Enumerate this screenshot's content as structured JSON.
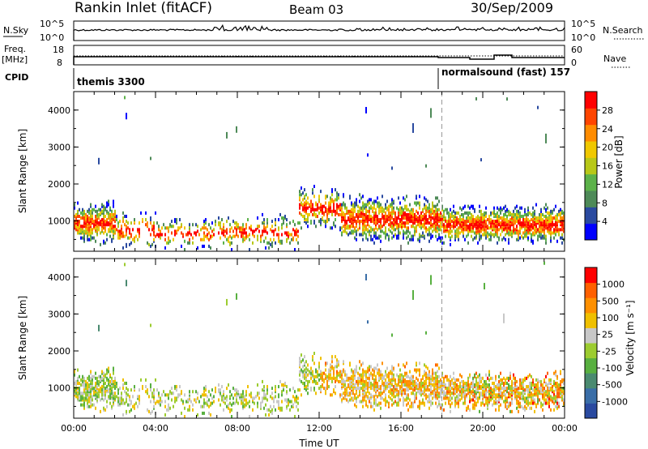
{
  "header": {
    "title": "Rankin Inlet (fitACF)",
    "beam": "Beam 03",
    "date": "30/Sep/2009"
  },
  "panels": {
    "nsky": {
      "left_label": "N.Sky",
      "right_label": "N.Search",
      "left_ticks": [
        "10^5",
        "10^0"
      ],
      "right_ticks": [
        "10^5",
        "10^0"
      ]
    },
    "freq": {
      "left_label_1": "Freq.",
      "left_label_2": "[MHz]",
      "right_label": "Nave",
      "left_ticks": [
        "18",
        "8"
      ],
      "right_ticks": [
        "60",
        "0"
      ]
    },
    "cpid": {
      "label": "CPID",
      "mode_1": "themis 3300",
      "mode_2": "normalsound (fast) 157"
    }
  },
  "colors": {
    "power": [
      "#0000ff",
      "#2a4aa0",
      "#4e8a58",
      "#5cb24a",
      "#b8c818",
      "#f0c800",
      "#ff8c00",
      "#ff4500",
      "#ff0000"
    ],
    "velocity": [
      "#2a4aa0",
      "#3a6ea8",
      "#4a8a70",
      "#58b040",
      "#9ccc30",
      "#c8c8c8",
      "#f0c000",
      "#ff9000",
      "#ff6000",
      "#ff0000"
    ]
  },
  "chart_data": [
    {
      "type": "heatmap",
      "name": "power",
      "ylabel": "Slant Range [km]",
      "xlabel": "",
      "x_ticks": [
        "00:00",
        "04:00",
        "08:00",
        "12:00",
        "16:00",
        "20:00",
        "00:00"
      ],
      "y_ticks": [
        "1000",
        "2000",
        "3000",
        "4000"
      ],
      "xlim_hours": [
        0,
        24
      ],
      "ylim_km": [
        180,
        4500
      ],
      "colorbar_label": "Power [dB]",
      "colorbar_ticks": [
        "28",
        "24",
        "20",
        "16",
        "12",
        "8",
        "4"
      ],
      "mode_change_hour": 18
    },
    {
      "type": "heatmap",
      "name": "velocity",
      "ylabel": "Slant Range [km]",
      "xlabel": "Time UT",
      "x_ticks": [
        "00:00",
        "04:00",
        "08:00",
        "12:00",
        "16:00",
        "20:00",
        "00:00"
      ],
      "y_ticks": [
        "1000",
        "2000",
        "3000",
        "4000"
      ],
      "xlim_hours": [
        0,
        24
      ],
      "ylim_km": [
        180,
        4500
      ],
      "colorbar_label": "Velocity [m s⁻¹]",
      "colorbar_ticks": [
        "1000",
        "500",
        "100",
        "25",
        "-25",
        "-100",
        "-500",
        "-1000"
      ],
      "mode_change_hour": 18
    }
  ]
}
